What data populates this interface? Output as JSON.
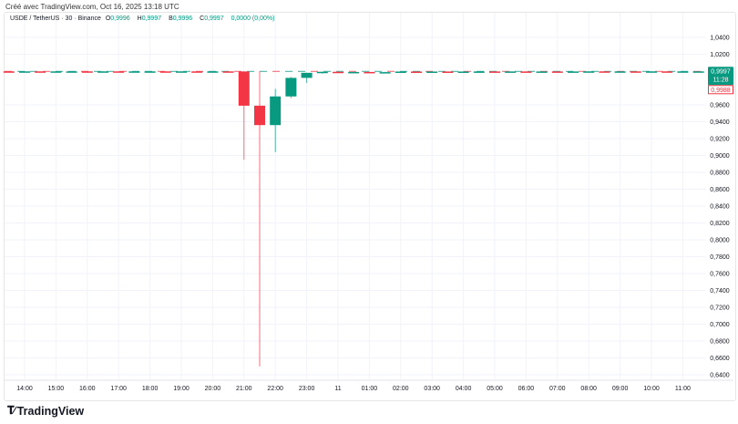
{
  "credit": "Créé avec TradingView.com, Oct 16, 2025 13:18 UTC",
  "legend": {
    "symbol": "USDE / TetherUS · 30 · Binance",
    "o_label": "O",
    "o": "0,9996",
    "h_label": "H",
    "h": "0,9997",
    "b_label": "B",
    "b": "0,9996",
    "c_label": "C",
    "c": "0,9997",
    "change": "0,0000 (0,00%)"
  },
  "price_badges": {
    "last": "0,9997",
    "countdown": "11:28",
    "other": "0,9988"
  },
  "brand": "TradingView",
  "colors": {
    "up": "#089981",
    "down": "#f23645",
    "grid": "#f0f3fa"
  },
  "chart_data": {
    "type": "candlestick",
    "interval": "30m",
    "grid": true,
    "ylim": [
      0.63,
      1.055
    ],
    "y_ticks": [
      "1,0400",
      "1,0200",
      "0,9600",
      "0,9400",
      "0,9200",
      "0,9000",
      "0,8800",
      "0,8600",
      "0,8400",
      "0,8200",
      "0,8000",
      "0,7800",
      "0,7600",
      "0,7400",
      "0,7200",
      "0,7000",
      "0,6800",
      "0,6600",
      "0,6400"
    ],
    "y_tick_values": [
      1.04,
      1.02,
      0.96,
      0.94,
      0.92,
      0.9,
      0.88,
      0.86,
      0.84,
      0.82,
      0.8,
      0.78,
      0.76,
      0.74,
      0.72,
      0.7,
      0.68,
      0.66,
      0.64
    ],
    "x_ticks": [
      "14:00",
      "15:00",
      "16:00",
      "17:00",
      "18:00",
      "19:00",
      "20:00",
      "21:00",
      "22:00",
      "23:00",
      "11",
      "01:00",
      "02:00",
      "03:00",
      "04:00",
      "05:00",
      "06:00",
      "07:00",
      "08:00",
      "09:00",
      "10:00",
      "11:00"
    ],
    "candles": [
      {
        "t": "13:30",
        "o": 0.9997,
        "h": 0.9998,
        "l": 0.9996,
        "c": 0.9996
      },
      {
        "t": "14:00",
        "o": 0.9996,
        "h": 0.9998,
        "l": 0.9995,
        "c": 0.9997
      },
      {
        "t": "14:30",
        "o": 0.9997,
        "h": 0.9998,
        "l": 0.9996,
        "c": 0.9996
      },
      {
        "t": "15:00",
        "o": 0.9996,
        "h": 0.9998,
        "l": 0.9995,
        "c": 0.9997
      },
      {
        "t": "15:30",
        "o": 0.9997,
        "h": 0.9998,
        "l": 0.9996,
        "c": 0.9997
      },
      {
        "t": "16:00",
        "o": 0.9997,
        "h": 0.9998,
        "l": 0.9996,
        "c": 0.9996
      },
      {
        "t": "16:30",
        "o": 0.9996,
        "h": 0.9998,
        "l": 0.9995,
        "c": 0.9997
      },
      {
        "t": "17:00",
        "o": 0.9997,
        "h": 0.9998,
        "l": 0.9996,
        "c": 0.9996
      },
      {
        "t": "17:30",
        "o": 0.9996,
        "h": 0.9998,
        "l": 0.9995,
        "c": 0.9997
      },
      {
        "t": "18:00",
        "o": 0.9997,
        "h": 0.9998,
        "l": 0.9996,
        "c": 0.9997
      },
      {
        "t": "18:30",
        "o": 0.9997,
        "h": 0.9998,
        "l": 0.9996,
        "c": 0.9996
      },
      {
        "t": "19:00",
        "o": 0.9996,
        "h": 0.9998,
        "l": 0.9995,
        "c": 0.9997
      },
      {
        "t": "19:30",
        "o": 0.9997,
        "h": 0.9998,
        "l": 0.9996,
        "c": 0.9996
      },
      {
        "t": "20:00",
        "o": 0.9996,
        "h": 0.9998,
        "l": 0.9995,
        "c": 0.9997
      },
      {
        "t": "20:30",
        "o": 0.9997,
        "h": 0.9998,
        "l": 0.9996,
        "c": 0.9996
      },
      {
        "t": "21:00",
        "o": 0.9996,
        "h": 0.9998,
        "l": 0.895,
        "c": 0.959
      },
      {
        "t": "21:30",
        "o": 0.959,
        "h": 0.9998,
        "l": 0.65,
        "c": 0.936
      },
      {
        "t": "22:00",
        "o": 0.936,
        "h": 0.979,
        "l": 0.904,
        "c": 0.97
      },
      {
        "t": "22:30",
        "o": 0.97,
        "h": 0.993,
        "l": 0.968,
        "c": 0.992
      },
      {
        "t": "23:00",
        "o": 0.992,
        "h": 0.998,
        "l": 0.986,
        "c": 0.998
      },
      {
        "t": "23:30",
        "o": 0.998,
        "h": 0.9995,
        "l": 0.997,
        "c": 0.9992
      },
      {
        "t": "00:00",
        "o": 0.9992,
        "h": 0.9995,
        "l": 0.998,
        "c": 0.9988
      },
      {
        "t": "00:30",
        "o": 0.9988,
        "h": 0.9993,
        "l": 0.998,
        "c": 0.999
      },
      {
        "t": "01:00",
        "o": 0.999,
        "h": 0.9994,
        "l": 0.998,
        "c": 0.9982
      },
      {
        "t": "01:30",
        "o": 0.9982,
        "h": 0.9992,
        "l": 0.9978,
        "c": 0.9988
      },
      {
        "t": "02:00",
        "o": 0.9988,
        "h": 0.9996,
        "l": 0.9986,
        "c": 0.9995
      },
      {
        "t": "02:30",
        "o": 0.9995,
        "h": 0.9997,
        "l": 0.9993,
        "c": 0.9994
      },
      {
        "t": "03:00",
        "o": 0.9994,
        "h": 0.9997,
        "l": 0.9993,
        "c": 0.9995
      },
      {
        "t": "03:30",
        "o": 0.9995,
        "h": 0.9997,
        "l": 0.9993,
        "c": 0.9994
      },
      {
        "t": "04:00",
        "o": 0.9994,
        "h": 0.9997,
        "l": 0.9993,
        "c": 0.9995
      },
      {
        "t": "04:30",
        "o": 0.9995,
        "h": 0.9997,
        "l": 0.9994,
        "c": 0.9996
      },
      {
        "t": "05:00",
        "o": 0.9996,
        "h": 0.9997,
        "l": 0.9994,
        "c": 0.9995
      },
      {
        "t": "05:30",
        "o": 0.9995,
        "h": 0.9997,
        "l": 0.9994,
        "c": 0.9996
      },
      {
        "t": "06:00",
        "o": 0.9996,
        "h": 0.9998,
        "l": 0.9995,
        "c": 0.9995
      },
      {
        "t": "06:30",
        "o": 0.9995,
        "h": 0.9997,
        "l": 0.9994,
        "c": 0.9996
      },
      {
        "t": "07:00",
        "o": 0.9996,
        "h": 0.9998,
        "l": 0.9995,
        "c": 0.9995
      },
      {
        "t": "07:30",
        "o": 0.9995,
        "h": 0.9997,
        "l": 0.9994,
        "c": 0.9996
      },
      {
        "t": "08:00",
        "o": 0.9996,
        "h": 0.9998,
        "l": 0.9995,
        "c": 0.9997
      },
      {
        "t": "08:30",
        "o": 0.9997,
        "h": 0.9998,
        "l": 0.9995,
        "c": 0.9996
      },
      {
        "t": "09:00",
        "o": 0.9996,
        "h": 0.9998,
        "l": 0.9995,
        "c": 0.9997
      },
      {
        "t": "09:30",
        "o": 0.9997,
        "h": 0.9998,
        "l": 0.9995,
        "c": 0.9996
      },
      {
        "t": "10:00",
        "o": 0.9996,
        "h": 0.9998,
        "l": 0.9995,
        "c": 0.9997
      },
      {
        "t": "10:30",
        "o": 0.9997,
        "h": 0.9998,
        "l": 0.9995,
        "c": 0.9996
      },
      {
        "t": "11:00",
        "o": 0.9996,
        "h": 0.9998,
        "l": 0.9995,
        "c": 0.9997
      },
      {
        "t": "11:30",
        "o": 0.9996,
        "h": 0.9997,
        "l": 0.9996,
        "c": 0.9997
      }
    ],
    "last_price": 0.9997
  }
}
